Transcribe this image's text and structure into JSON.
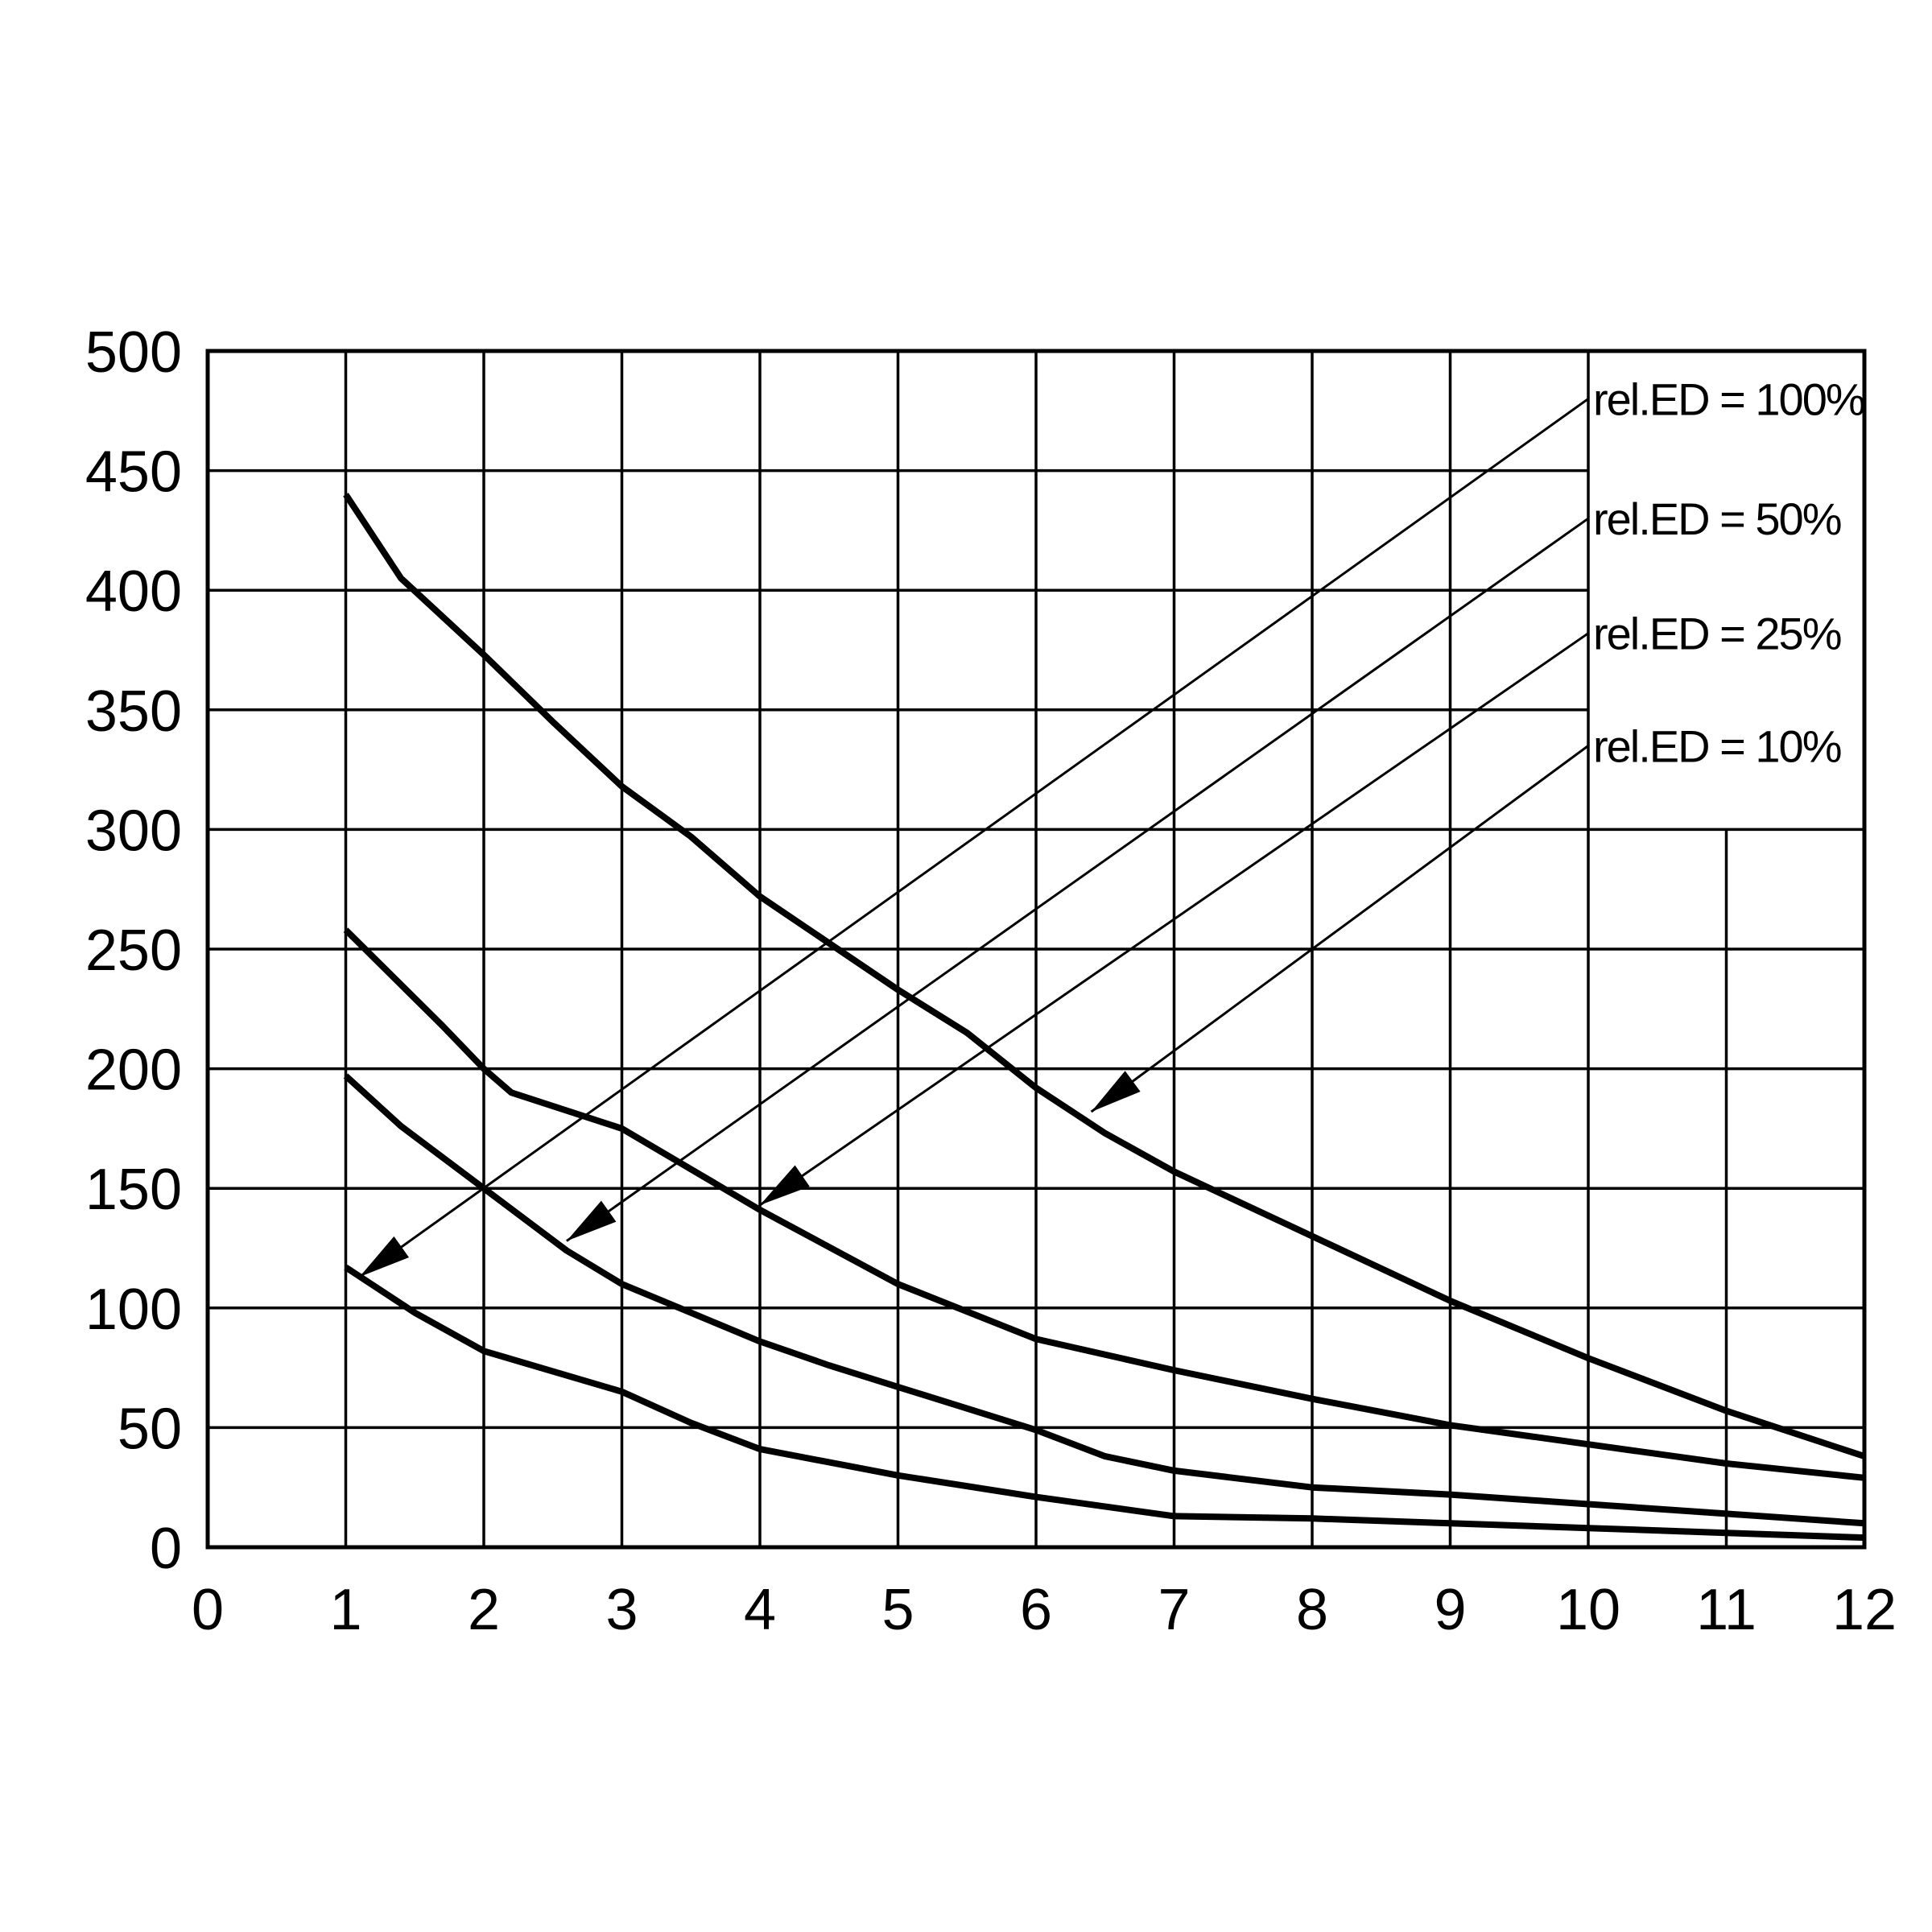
{
  "chart_data": {
    "type": "line",
    "title": "",
    "xlabel": "",
    "ylabel": "",
    "xlim": [
      0,
      12
    ],
    "ylim": [
      0,
      500
    ],
    "x_ticks": [
      "0",
      "1",
      "2",
      "3",
      "4",
      "5",
      "6",
      "7",
      "8",
      "9",
      "10",
      "11",
      "12"
    ],
    "y_ticks": [
      "0",
      "50",
      "100",
      "150",
      "200",
      "250",
      "300",
      "350",
      "400",
      "450",
      "500"
    ],
    "grid": true,
    "line_color": "#000000",
    "series": [
      {
        "name": "rel.ED = 10%",
        "points": [
          [
            1,
            440
          ],
          [
            1.4,
            405
          ],
          [
            2,
            373
          ],
          [
            2.5,
            345
          ],
          [
            3,
            318
          ],
          [
            3.5,
            297
          ],
          [
            4,
            272
          ],
          [
            5,
            233
          ],
          [
            5.5,
            215
          ],
          [
            6,
            192
          ],
          [
            6.5,
            173
          ],
          [
            7,
            157
          ],
          [
            8,
            130
          ],
          [
            9,
            103
          ],
          [
            10,
            79
          ],
          [
            11,
            57
          ],
          [
            12,
            38
          ]
        ]
      },
      {
        "name": "rel.ED = 25%",
        "points": [
          [
            1,
            258
          ],
          [
            1.7,
            218
          ],
          [
            2,
            200
          ],
          [
            2.2,
            190
          ],
          [
            3,
            175
          ],
          [
            3.5,
            158
          ],
          [
            4,
            141
          ],
          [
            5,
            110
          ],
          [
            6,
            87
          ],
          [
            7,
            74
          ],
          [
            8,
            62
          ],
          [
            9,
            51
          ],
          [
            10,
            43
          ],
          [
            11,
            35
          ],
          [
            12,
            29
          ]
        ]
      },
      {
        "name": "rel.ED = 50%",
        "points": [
          [
            1,
            197
          ],
          [
            1.4,
            176
          ],
          [
            2,
            150
          ],
          [
            2.6,
            124
          ],
          [
            3,
            110
          ],
          [
            3.5,
            98
          ],
          [
            4,
            86
          ],
          [
            4.5,
            76
          ],
          [
            5,
            67
          ],
          [
            6,
            49
          ],
          [
            6.5,
            38
          ],
          [
            7,
            32
          ],
          [
            8,
            25
          ],
          [
            9,
            22
          ],
          [
            10,
            18
          ],
          [
            11,
            14
          ],
          [
            12,
            10
          ]
        ]
      },
      {
        "name": "rel.ED = 100%",
        "points": [
          [
            1,
            117
          ],
          [
            1.5,
            98
          ],
          [
            2,
            82
          ],
          [
            3,
            65
          ],
          [
            3.5,
            52
          ],
          [
            4,
            41
          ],
          [
            5,
            30
          ],
          [
            6,
            21
          ],
          [
            7,
            13
          ],
          [
            8,
            12
          ],
          [
            9,
            10
          ],
          [
            10,
            8
          ],
          [
            11,
            6
          ],
          [
            12,
            4
          ]
        ]
      }
    ],
    "legend_labels": [
      "rel.ED = 100%",
      "rel.ED = 50%",
      "rel.ED = 25%",
      "rel.ED = 10%"
    ],
    "annotations": [
      {
        "label": "rel.ED = 100%",
        "from": [
          10,
          480
        ],
        "to": [
          1.1,
          113
        ]
      },
      {
        "label": "rel.ED = 50%",
        "from": [
          10,
          430
        ],
        "to": [
          2.6,
          128
        ]
      },
      {
        "label": "rel.ED = 25%",
        "from": [
          10,
          382
        ],
        "to": [
          4.0,
          143
        ]
      },
      {
        "label": "rel.ED = 10%",
        "from": [
          10,
          335
        ],
        "to": [
          6.4,
          182
        ]
      }
    ]
  }
}
